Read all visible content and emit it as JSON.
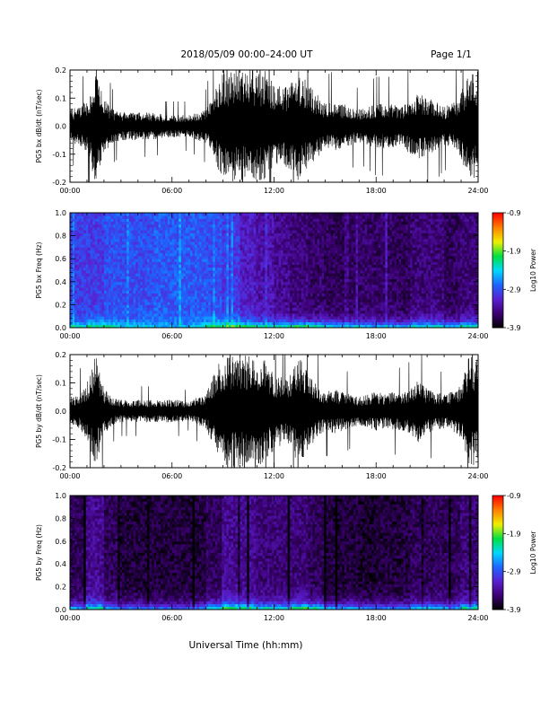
{
  "header": {
    "title": "2018/05/09   00:00–24:00 UT",
    "page": "Page 1/1"
  },
  "xlabel": "Universal Time (hh:mm)",
  "colorscale": {
    "colors": [
      "#000000",
      "#3b0070",
      "#5a1fd0",
      "#1e64ff",
      "#00d8ff",
      "#00e040",
      "#f0f000",
      "#ff8000",
      "#ff0000"
    ]
  },
  "chart_data": [
    {
      "type": "line",
      "ylabel": "PG5 bx dB/dt (nT/sec)",
      "xlim": [
        0,
        24
      ],
      "ylim": [
        -0.2,
        0.2
      ],
      "x_ticks": [
        "00:00",
        "06:00",
        "12:00",
        "18:00",
        "24:00"
      ],
      "y_ticks": [
        "-0.2",
        "-0.1",
        "0.0",
        "0.1",
        "0.2"
      ],
      "series": [
        {
          "x": [
            0,
            0.5,
            1,
            1.5,
            2,
            2.5,
            3,
            3.5,
            4,
            4.5,
            5,
            5.5,
            6,
            6.5,
            7,
            7.5,
            8,
            8.5,
            9,
            9.5,
            10,
            10.5,
            11,
            11.5,
            12,
            12.5,
            13,
            13.5,
            14,
            14.5,
            15,
            15.5,
            16,
            16.5,
            17,
            17.5,
            18,
            18.5,
            19,
            19.5,
            20,
            20.5,
            21,
            21.5,
            22,
            22.5,
            23,
            23.5,
            24
          ],
          "envelope": [
            0.06,
            0.07,
            0.09,
            0.2,
            0.1,
            0.06,
            0.05,
            0.05,
            0.05,
            0.05,
            0.05,
            0.04,
            0.04,
            0.04,
            0.04,
            0.05,
            0.06,
            0.12,
            0.2,
            0.2,
            0.2,
            0.2,
            0.2,
            0.2,
            0.16,
            0.14,
            0.16,
            0.2,
            0.15,
            0.12,
            0.08,
            0.09,
            0.08,
            0.07,
            0.06,
            0.07,
            0.08,
            0.08,
            0.08,
            0.07,
            0.1,
            0.12,
            0.1,
            0.09,
            0.07,
            0.08,
            0.12,
            0.2,
            0.2
          ]
        }
      ]
    },
    {
      "type": "heatmap",
      "ylabel": "PG5 bx Freq (Hz)",
      "colorbar_label": "Log10 Power",
      "xlim": [
        0,
        24
      ],
      "ylim": [
        0,
        1
      ],
      "x_ticks": [
        "00:00",
        "06:00",
        "12:00",
        "18:00",
        "24:00"
      ],
      "y_ticks": [
        "0.0",
        "0.2",
        "0.4",
        "0.6",
        "0.8",
        "1.0"
      ],
      "colorbar_range": [
        -3.9,
        -0.9
      ],
      "colorbar_ticks": [
        "-0.9",
        "-1.9",
        "-2.9",
        "-3.9"
      ],
      "hour_background_level": [
        -3.0,
        -3.0,
        -2.9,
        -2.9,
        -2.9,
        -2.85,
        -2.85,
        -2.85,
        -2.9,
        -3.0,
        -3.2,
        -3.3,
        -3.4,
        -3.5,
        -3.55,
        -3.6,
        -3.6,
        -3.55,
        -3.55,
        -3.6,
        -3.5,
        -3.5,
        -3.6,
        -3.5
      ],
      "low_freq_peak_level": [
        -2.2,
        -1.9,
        -2.1,
        -2.3,
        -2.3,
        -2.4,
        -2.4,
        -2.3,
        -2.0,
        -1.7,
        -1.8,
        -2.0,
        -1.9,
        -1.7,
        -1.8,
        -2.1,
        -2.2,
        -2.3,
        -2.3,
        -2.3,
        -2.0,
        -2.0,
        -2.2,
        -1.9
      ]
    },
    {
      "type": "line",
      "ylabel": "PG5 by dB/dt (nT/sec)",
      "xlim": [
        0,
        24
      ],
      "ylim": [
        -0.2,
        0.2
      ],
      "x_ticks": [
        "00:00",
        "06:00",
        "12:00",
        "18:00",
        "24:00"
      ],
      "y_ticks": [
        "-0.2",
        "-0.1",
        "0.0",
        "0.1",
        "0.2"
      ],
      "series": [
        {
          "x": [
            0,
            0.5,
            1,
            1.5,
            2,
            2.5,
            3,
            3.5,
            4,
            4.5,
            5,
            5.5,
            6,
            6.5,
            7,
            7.5,
            8,
            8.5,
            9,
            9.5,
            10,
            10.5,
            11,
            11.5,
            12,
            12.5,
            13,
            13.5,
            14,
            14.5,
            15,
            15.5,
            16,
            16.5,
            17,
            17.5,
            18,
            18.5,
            19,
            19.5,
            20,
            20.5,
            21,
            21.5,
            22,
            22.5,
            23,
            23.5,
            24
          ],
          "envelope": [
            0.05,
            0.06,
            0.1,
            0.2,
            0.08,
            0.05,
            0.04,
            0.04,
            0.04,
            0.04,
            0.04,
            0.04,
            0.04,
            0.04,
            0.03,
            0.05,
            0.06,
            0.14,
            0.2,
            0.2,
            0.2,
            0.2,
            0.2,
            0.18,
            0.14,
            0.12,
            0.13,
            0.2,
            0.13,
            0.1,
            0.07,
            0.08,
            0.07,
            0.06,
            0.05,
            0.06,
            0.07,
            0.06,
            0.07,
            0.07,
            0.08,
            0.11,
            0.08,
            0.07,
            0.06,
            0.07,
            0.1,
            0.2,
            0.2
          ]
        }
      ]
    },
    {
      "type": "heatmap",
      "ylabel": "PG5 by Freq (Hz)",
      "colorbar_label": "Log10 Power",
      "xlim": [
        0,
        24
      ],
      "ylim": [
        0,
        1
      ],
      "x_ticks": [
        "00:00",
        "06:00",
        "12:00",
        "18:00",
        "24:00"
      ],
      "y_ticks": [
        "0.0",
        "0.2",
        "0.4",
        "0.6",
        "0.8",
        "1.0"
      ],
      "colorbar_range": [
        -3.9,
        -0.9
      ],
      "colorbar_ticks": [
        "-0.9",
        "-1.9",
        "-2.9",
        "-3.9"
      ],
      "hour_background_level": [
        -3.6,
        -3.4,
        -3.6,
        -3.7,
        -3.7,
        -3.7,
        -3.7,
        -3.7,
        -3.6,
        -3.4,
        -3.4,
        -3.5,
        -3.5,
        -3.5,
        -3.6,
        -3.7,
        -3.7,
        -3.75,
        -3.7,
        -3.7,
        -3.6,
        -3.6,
        -3.6,
        -3.5
      ],
      "low_freq_peak_level": [
        -2.3,
        -1.9,
        -2.3,
        -2.5,
        -2.5,
        -2.6,
        -2.6,
        -2.5,
        -2.0,
        -1.6,
        -1.8,
        -2.0,
        -2.0,
        -1.6,
        -1.8,
        -2.2,
        -2.3,
        -2.4,
        -2.4,
        -2.4,
        -2.1,
        -2.1,
        -2.3,
        -1.8
      ]
    }
  ]
}
